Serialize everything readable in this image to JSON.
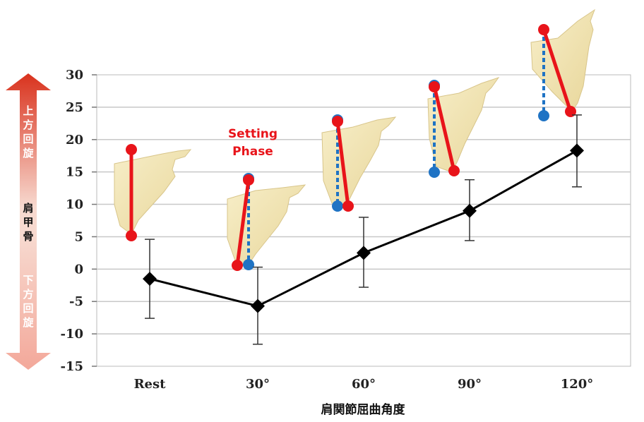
{
  "chart_data": {
    "type": "line",
    "categories": [
      "Rest",
      "30°",
      "60°",
      "90°",
      "120°"
    ],
    "series": [
      {
        "values": [
          -1.5,
          -5.7,
          2.5,
          9.0,
          18.3
        ],
        "error_upper": [
          4.6,
          0.3,
          8.0,
          13.8,
          23.8
        ],
        "error_lower": [
          -7.6,
          -11.6,
          -2.8,
          4.4,
          12.7
        ]
      }
    ],
    "ylim": [
      -15,
      30
    ],
    "yticks": [
      30,
      25,
      20,
      15,
      10,
      5,
      0,
      -5,
      -10,
      -15
    ],
    "ytick_labels": [
      "30",
      "25",
      "20",
      "15",
      "10",
      "5",
      "0",
      "-5",
      "-10",
      "-15"
    ],
    "xlabel": "肩関節屈曲角度",
    "grid": true,
    "annotations": {
      "setting_phase": [
        "Setting",
        "Phase"
      ],
      "side_arrow": {
        "upper": [
          "上",
          "方",
          "回",
          "旋"
        ],
        "middle": [
          "肩",
          "甲",
          "骨"
        ],
        "lower": [
          "下",
          "方",
          "回",
          "旋"
        ]
      }
    },
    "colors": {
      "line": "#000000",
      "marker": "#000000",
      "red_marker": "#e8141a",
      "blue_marker": "#1f73c4",
      "bone": "#f2e6b6",
      "arrow_top": "#d9321d",
      "arrow_bottom": "#f5b4a8"
    }
  }
}
